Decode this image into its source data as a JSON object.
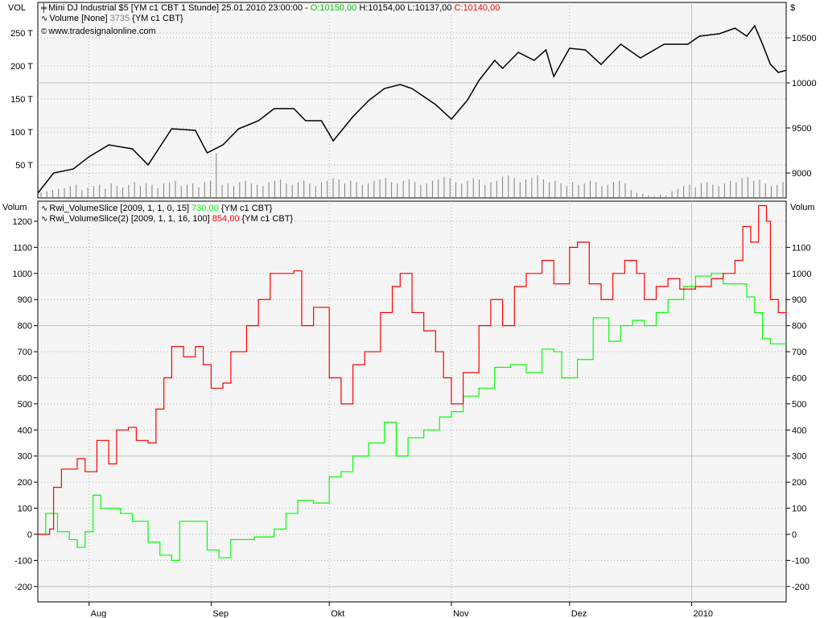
{
  "top_panel": {
    "left_axis_title": "VOL",
    "right_axis_title": "$",
    "legend": {
      "line1": {
        "name": "Mini DJ Industrial $5 [YM c1 CBT  1 Stunde] 25.01.2010 23:00:00 - ",
        "open": "O:10150,00",
        "high": "H:10154,00",
        "low": "L:10137,00",
        "close": "C:10140,00"
      },
      "line2": {
        "name": "Volume [None] ",
        "value": "3735",
        "suffix": " {YM c1 CBT}"
      },
      "line3": "www.tradesignalonline.com"
    }
  },
  "bottom_panel": {
    "left_axis_title": "Volum",
    "right_axis_title": "Volum",
    "legend": {
      "line1": {
        "name": "Rwi_VolumeSlice [2009, 1, 1, 0, 15] ",
        "value": "730,00",
        "suffix": " {YM c1 CBT}"
      },
      "line2": {
        "name": "Rwi_VolumeSlice(2) [2009, 1, 1, 16, 100] ",
        "value": "854,00",
        "suffix": " {YM c1 CBT}"
      }
    }
  },
  "colors": {
    "open": "#00c800",
    "close": "#ff0000",
    "value_gray": "#808080",
    "series1": "#00ff00",
    "series2": "#ff0000",
    "price": "#000000",
    "volume": "#808080",
    "plot_bg": "#f5f5f5"
  },
  "chart_data": [
    {
      "type": "line",
      "title": "Mini DJ Industrial $5",
      "x_range": [
        "2009-07-19",
        "2010-01-25"
      ],
      "x_tick_labels": [
        {
          "date": "2009-08-01",
          "label": "Aug"
        },
        {
          "date": "2009-09-01",
          "label": "Sep"
        },
        {
          "date": "2009-10-01",
          "label": "Okt"
        },
        {
          "date": "2009-11-01",
          "label": "Nov"
        },
        {
          "date": "2009-12-01",
          "label": "Dez"
        },
        {
          "date": "2010-01-01",
          "label": "2010"
        }
      ],
      "left_axis": {
        "ticks": [
          50,
          100,
          150,
          200,
          250
        ],
        "tick_labels": [
          "50 T",
          "100 T",
          "150 T",
          "200 T",
          "250 T"
        ],
        "range": [
          0,
          300
        ]
      },
      "right_axis": {
        "ticks": [
          9000,
          9500,
          10000,
          10500
        ],
        "tick_labels": [
          "9000",
          "9500",
          "10000",
          "10500"
        ]
      },
      "price": [
        [
          "2009-07-19",
          8777
        ],
        [
          "2009-07-23",
          9000
        ],
        [
          "2009-07-28",
          9045
        ],
        [
          "2009-08-01",
          9180
        ],
        [
          "2009-08-06",
          9312
        ],
        [
          "2009-08-12",
          9268
        ],
        [
          "2009-08-16",
          9090
        ],
        [
          "2009-08-22",
          9491
        ],
        [
          "2009-08-28",
          9473
        ],
        [
          "2009-08-31",
          9223
        ],
        [
          "2009-09-04",
          9312
        ],
        [
          "2009-09-08",
          9491
        ],
        [
          "2009-09-13",
          9580
        ],
        [
          "2009-09-17",
          9714
        ],
        [
          "2009-09-22",
          9714
        ],
        [
          "2009-09-25",
          9580
        ],
        [
          "2009-09-29",
          9580
        ],
        [
          "2009-10-02",
          9357
        ],
        [
          "2009-10-07",
          9625
        ],
        [
          "2009-10-11",
          9804
        ],
        [
          "2009-10-15",
          9937
        ],
        [
          "2009-10-19",
          9982
        ],
        [
          "2009-10-22",
          9937
        ],
        [
          "2009-10-25",
          9848
        ],
        [
          "2009-10-28",
          9759
        ],
        [
          "2009-11-01",
          9598
        ],
        [
          "2009-11-05",
          9804
        ],
        [
          "2009-11-08",
          10027
        ],
        [
          "2009-11-12",
          10250
        ],
        [
          "2009-11-14",
          10161
        ],
        [
          "2009-11-18",
          10339
        ],
        [
          "2009-11-22",
          10250
        ],
        [
          "2009-11-25",
          10366
        ],
        [
          "2009-11-27",
          10071
        ],
        [
          "2009-12-01",
          10384
        ],
        [
          "2009-12-05",
          10366
        ],
        [
          "2009-12-09",
          10205
        ],
        [
          "2009-12-14",
          10429
        ],
        [
          "2009-12-19",
          10277
        ],
        [
          "2009-12-25",
          10429
        ],
        [
          "2009-12-31",
          10429
        ],
        [
          "2010-01-03",
          10518
        ],
        [
          "2010-01-08",
          10545
        ],
        [
          "2010-01-12",
          10607
        ],
        [
          "2010-01-15",
          10518
        ],
        [
          "2010-01-17",
          10634
        ],
        [
          "2010-01-19",
          10429
        ],
        [
          "2010-01-21",
          10205
        ],
        [
          "2010-01-23",
          10116
        ],
        [
          "2010-01-25",
          10140
        ]
      ],
      "volume_T": [
        8,
        10,
        12,
        14,
        15,
        18,
        20,
        12,
        16,
        18,
        20,
        14,
        22,
        18,
        16,
        20,
        24,
        18,
        22,
        20,
        15,
        22,
        24,
        26,
        18,
        20,
        22,
        16,
        24,
        26,
        68,
        20,
        22,
        18,
        24,
        26,
        22,
        20,
        18,
        24,
        26,
        28,
        22,
        20,
        24,
        26,
        22,
        18,
        24,
        26,
        30,
        28,
        22,
        26,
        24,
        20,
        22,
        26,
        28,
        30,
        24,
        22,
        26,
        28,
        24,
        20,
        22,
        26,
        28,
        32,
        30,
        24,
        22,
        26,
        30,
        28,
        20,
        24,
        26,
        32,
        34,
        30,
        24,
        28,
        30,
        34,
        28,
        24,
        26,
        22,
        18,
        24,
        20,
        22,
        26,
        24,
        18,
        20,
        24,
        26,
        22,
        12,
        8,
        6,
        4,
        3,
        5,
        4,
        10,
        14,
        18,
        20,
        16,
        22,
        24,
        20,
        18,
        22,
        26,
        24,
        30,
        32,
        26,
        28,
        22,
        18,
        20,
        24
      ]
    },
    {
      "type": "line",
      "x_range": [
        "2009-07-19",
        "2010-01-25"
      ],
      "left_axis": {
        "ticks": [
          -200,
          -100,
          0,
          100,
          200,
          300,
          400,
          500,
          600,
          700,
          800,
          900,
          1000,
          1100,
          1200
        ]
      },
      "right_axis": {
        "ticks": [
          -200,
          -100,
          0,
          100,
          200,
          300,
          400,
          500,
          600,
          700,
          800,
          900,
          1000,
          1100
        ]
      },
      "ylim": [
        -260,
        1300
      ],
      "step": true,
      "series": [
        {
          "name": "Rwi_VolumeSlice [2009, 1, 1, 0, 15]",
          "color": "#00ff00",
          "points": [
            [
              "2009-07-19",
              0
            ],
            [
              "2009-07-21",
              80
            ],
            [
              "2009-07-24",
              10
            ],
            [
              "2009-07-27",
              -20
            ],
            [
              "2009-07-29",
              -50
            ],
            [
              "2009-07-31",
              10
            ],
            [
              "2009-08-02",
              150
            ],
            [
              "2009-08-04",
              100
            ],
            [
              "2009-08-06",
              100
            ],
            [
              "2009-08-09",
              80
            ],
            [
              "2009-08-12",
              50
            ],
            [
              "2009-08-16",
              -30
            ],
            [
              "2009-08-19",
              -80
            ],
            [
              "2009-08-22",
              -100
            ],
            [
              "2009-08-24",
              50
            ],
            [
              "2009-08-28",
              50
            ],
            [
              "2009-08-31",
              -60
            ],
            [
              "2009-09-03",
              -90
            ],
            [
              "2009-09-06",
              -20
            ],
            [
              "2009-09-12",
              -10
            ],
            [
              "2009-09-17",
              20
            ],
            [
              "2009-09-20",
              80
            ],
            [
              "2009-09-23",
              130
            ],
            [
              "2009-09-27",
              120
            ],
            [
              "2009-10-01",
              220
            ],
            [
              "2009-10-04",
              240
            ],
            [
              "2009-10-07",
              300
            ],
            [
              "2009-10-11",
              350
            ],
            [
              "2009-10-15",
              430
            ],
            [
              "2009-10-18",
              300
            ],
            [
              "2009-10-21",
              370
            ],
            [
              "2009-10-25",
              400
            ],
            [
              "2009-10-29",
              450
            ],
            [
              "2009-11-01",
              470
            ],
            [
              "2009-11-04",
              530
            ],
            [
              "2009-11-08",
              560
            ],
            [
              "2009-11-12",
              640
            ],
            [
              "2009-11-16",
              650
            ],
            [
              "2009-11-20",
              620
            ],
            [
              "2009-11-24",
              710
            ],
            [
              "2009-11-27",
              700
            ],
            [
              "2009-11-29",
              600
            ],
            [
              "2009-12-03",
              670
            ],
            [
              "2009-12-07",
              830
            ],
            [
              "2009-12-11",
              740
            ],
            [
              "2009-12-14",
              800
            ],
            [
              "2009-12-17",
              820
            ],
            [
              "2009-12-20",
              800
            ],
            [
              "2009-12-23",
              850
            ],
            [
              "2009-12-26",
              900
            ],
            [
              "2009-12-30",
              950
            ],
            [
              "2010-01-02",
              990
            ],
            [
              "2010-01-06",
              1000
            ],
            [
              "2010-01-09",
              960
            ],
            [
              "2010-01-12",
              960
            ],
            [
              "2010-01-15",
              910
            ],
            [
              "2010-01-17",
              850
            ],
            [
              "2010-01-19",
              750
            ],
            [
              "2010-01-21",
              730
            ],
            [
              "2010-01-25",
              730
            ]
          ]
        },
        {
          "name": "Rwi_VolumeSlice(2) [2009, 1, 1, 16, 100]",
          "color": "#ff0000",
          "points": [
            [
              "2009-07-19",
              0
            ],
            [
              "2009-07-22",
              20
            ],
            [
              "2009-07-23",
              180
            ],
            [
              "2009-07-25",
              250
            ],
            [
              "2009-07-29",
              290
            ],
            [
              "2009-07-31",
              240
            ],
            [
              "2009-08-03",
              360
            ],
            [
              "2009-08-06",
              270
            ],
            [
              "2009-08-08",
              400
            ],
            [
              "2009-08-11",
              410
            ],
            [
              "2009-08-13",
              360
            ],
            [
              "2009-08-16",
              350
            ],
            [
              "2009-08-18",
              480
            ],
            [
              "2009-08-20",
              600
            ],
            [
              "2009-08-22",
              720
            ],
            [
              "2009-08-25",
              680
            ],
            [
              "2009-08-28",
              720
            ],
            [
              "2009-08-30",
              650
            ],
            [
              "2009-09-01",
              560
            ],
            [
              "2009-09-04",
              580
            ],
            [
              "2009-09-06",
              700
            ],
            [
              "2009-09-10",
              800
            ],
            [
              "2009-09-13",
              900
            ],
            [
              "2009-09-16",
              1000
            ],
            [
              "2009-09-22",
              1010
            ],
            [
              "2009-09-24",
              800
            ],
            [
              "2009-09-27",
              870
            ],
            [
              "2009-10-01",
              600
            ],
            [
              "2009-10-04",
              500
            ],
            [
              "2009-10-07",
              650
            ],
            [
              "2009-10-10",
              700
            ],
            [
              "2009-10-14",
              850
            ],
            [
              "2009-10-17",
              950
            ],
            [
              "2009-10-19",
              1000
            ],
            [
              "2009-10-22",
              850
            ],
            [
              "2009-10-25",
              780
            ],
            [
              "2009-10-28",
              700
            ],
            [
              "2009-10-30",
              600
            ],
            [
              "2009-11-01",
              500
            ],
            [
              "2009-11-04",
              620
            ],
            [
              "2009-11-08",
              800
            ],
            [
              "2009-11-11",
              900
            ],
            [
              "2009-11-14",
              800
            ],
            [
              "2009-11-17",
              950
            ],
            [
              "2009-11-20",
              1000
            ],
            [
              "2009-11-24",
              1050
            ],
            [
              "2009-11-27",
              960
            ],
            [
              "2009-12-01",
              1100
            ],
            [
              "2009-12-03",
              1120
            ],
            [
              "2009-12-06",
              960
            ],
            [
              "2009-12-09",
              900
            ],
            [
              "2009-12-12",
              1000
            ],
            [
              "2009-12-15",
              1050
            ],
            [
              "2009-12-18",
              1000
            ],
            [
              "2009-12-20",
              900
            ],
            [
              "2009-12-23",
              950
            ],
            [
              "2009-12-26",
              980
            ],
            [
              "2009-12-29",
              940
            ],
            [
              "2010-01-02",
              950
            ],
            [
              "2010-01-06",
              980
            ],
            [
              "2010-01-09",
              1000
            ],
            [
              "2010-01-12",
              1050
            ],
            [
              "2010-01-14",
              1180
            ],
            [
              "2010-01-16",
              1120
            ],
            [
              "2010-01-18",
              1260
            ],
            [
              "2010-01-20",
              1200
            ],
            [
              "2010-01-21",
              900
            ],
            [
              "2010-01-23",
              850
            ],
            [
              "2010-01-25",
              854
            ]
          ]
        }
      ]
    }
  ]
}
